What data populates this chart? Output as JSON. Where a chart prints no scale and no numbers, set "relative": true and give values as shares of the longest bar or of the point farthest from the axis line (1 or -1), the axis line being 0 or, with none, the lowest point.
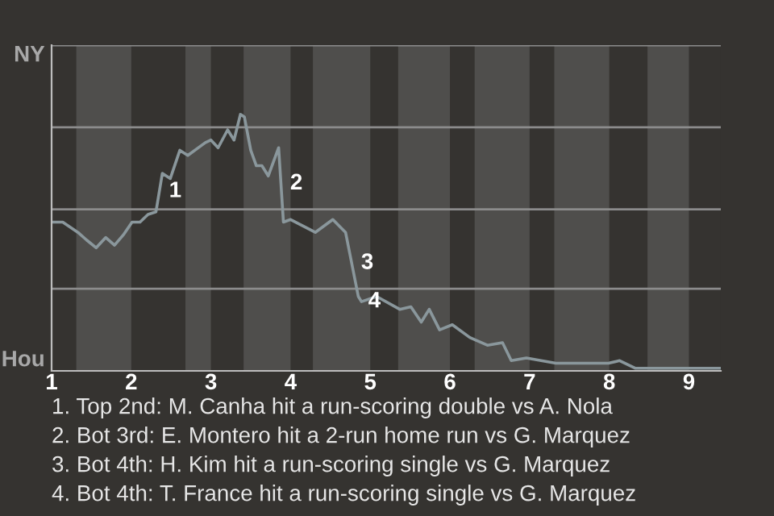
{
  "chart_data": {
    "type": "line",
    "relative": true,
    "x": [
      1.0,
      1.14,
      1.33,
      1.44,
      1.56,
      1.68,
      1.79,
      1.9,
      2.01,
      2.11,
      2.21,
      2.31,
      2.39,
      2.49,
      2.61,
      2.71,
      2.93,
      3.0,
      3.09,
      3.21,
      3.29,
      3.37,
      3.42,
      3.5,
      3.57,
      3.64,
      3.72,
      3.85,
      3.91,
      4.0,
      4.31,
      4.53,
      4.69,
      4.85,
      4.89,
      5.08,
      5.37,
      5.51,
      5.64,
      5.74,
      5.87,
      6.03,
      6.25,
      6.47,
      6.66,
      6.77,
      6.96,
      7.33,
      7.62,
      7.99,
      8.13,
      8.33,
      9.19,
      9.39
    ],
    "series": [
      {
        "color": "#8a979c",
        "values": [
          0.58,
          0.58,
          0.54,
          0.51,
          0.48,
          0.52,
          0.49,
          0.53,
          0.58,
          0.58,
          0.61,
          0.62,
          0.77,
          0.75,
          0.86,
          0.84,
          0.89,
          0.9,
          0.87,
          0.94,
          0.9,
          1,
          0.99,
          0.86,
          0.8,
          0.8,
          0.76,
          0.87,
          0.58,
          0.59,
          0.54,
          0.59,
          0.54,
          0.29,
          0.27,
          0.29,
          0.24,
          0.25,
          0.19,
          0.24,
          0.16,
          0.18,
          0.13,
          0.1,
          0.11,
          0.04,
          0.05,
          0.03,
          0.03,
          0.03,
          0.04,
          0.01,
          0.01,
          0.01
        ]
      }
    ],
    "xlim": [
      1,
      9.4
    ],
    "xticks": [
      1,
      2,
      3,
      4,
      5,
      6,
      7,
      8,
      9
    ],
    "ref_lines": [
      {
        "axis": "y",
        "value": 0.32,
        "color": "#8c8c8c"
      },
      {
        "axis": "y",
        "value": 0.63,
        "color": "#8c8c8c"
      },
      {
        "axis": "y",
        "value": 0.95,
        "color": "#8c8c8c"
      },
      {
        "axis": "y",
        "value": 1.27,
        "color": "#8c8c8c"
      }
    ],
    "bands": [
      {
        "axis": "x",
        "from": 1.31,
        "to": 2.0,
        "color": "#4f4e4c"
      },
      {
        "axis": "x",
        "from": 2.68,
        "to": 3.0,
        "color": "#4f4e4c"
      },
      {
        "axis": "x",
        "from": 3.41,
        "to": 4.0,
        "color": "#4f4e4c"
      },
      {
        "axis": "x",
        "from": 4.28,
        "to": 5.0,
        "color": "#4f4e4c"
      },
      {
        "axis": "x",
        "from": 5.35,
        "to": 6.0,
        "color": "#4f4e4c"
      },
      {
        "axis": "x",
        "from": 6.31,
        "to": 7.0,
        "color": "#4f4e4c"
      },
      {
        "axis": "x",
        "from": 7.31,
        "to": 8.0,
        "color": "#4f4e4c"
      },
      {
        "axis": "x",
        "from": 8.48,
        "to": 9.0,
        "color": "#4f4e4c"
      }
    ],
    "annotations": [
      "NY",
      "Hou",
      {
        "text": "1",
        "x": 2.39,
        "y": 0.7
      },
      {
        "text": "2",
        "x": 3.91,
        "y": 0.73
      },
      {
        "text": "3",
        "x": 4.8,
        "y": 0.42
      },
      {
        "text": "4",
        "x": 4.89,
        "y": 0.27
      },
      "1. Top 2nd: M. Canha hit a run-scoring double vs A. Nola",
      "2. Bot 3rd: E. Montero hit a 2-run home run vs G. Marquez",
      "3. Bot 4th: H. Kim hit a run-scoring single vs G. Marquez",
      "4. Bot 4th: T. France hit a run-scoring single vs G. Marquez"
    ],
    "line_style": "solid",
    "marker": "none"
  }
}
